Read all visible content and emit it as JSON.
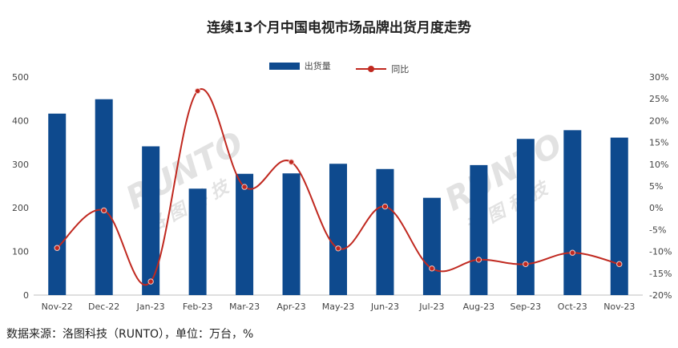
{
  "chart_data": {
    "type": "bar",
    "title": "连续13个月中国电视市场品牌出货月度走势",
    "categories": [
      "Nov-22",
      "Dec-22",
      "Jan-23",
      "Feb-23",
      "Mar-23",
      "Apr-23",
      "May-23",
      "Jun-23",
      "Jul-23",
      "Aug-23",
      "Sep-23",
      "Oct-23",
      "Nov-23"
    ],
    "series": [
      {
        "name": "出货量",
        "type": "bar",
        "axis": "left",
        "color": "#0e4a8e",
        "values": [
          416,
          449,
          341,
          244,
          278,
          279,
          301,
          289,
          223,
          298,
          358,
          378,
          361
        ]
      },
      {
        "name": "同比",
        "type": "line",
        "axis": "right",
        "color": "#c0281f",
        "values": [
          -9.2,
          -0.6,
          -16.9,
          26.8,
          4.8,
          10.5,
          -9.3,
          0.3,
          -13.9,
          -11.9,
          -12.9,
          -10.3,
          -12.9
        ]
      }
    ],
    "y_left": {
      "min": 0,
      "max": 500,
      "ticks": [
        "0",
        "100",
        "200",
        "300",
        "400",
        "500"
      ]
    },
    "y_right": {
      "min": -20,
      "max": 30,
      "ticks": [
        "-20%",
        "-15%",
        "-10%",
        "-5%",
        "0%",
        "5%",
        "10%",
        "15%",
        "20%",
        "25%",
        "30%"
      ]
    },
    "legend_position": "top-center",
    "grid": false
  },
  "source": "数据来源：洛图科技（RUNTO），单位：万台，%",
  "watermarks": [
    {
      "text": "RUNTO",
      "sub": "洛 图 科 技"
    },
    {
      "text": "RUNTO",
      "sub": "洛 图 科 技"
    }
  ]
}
